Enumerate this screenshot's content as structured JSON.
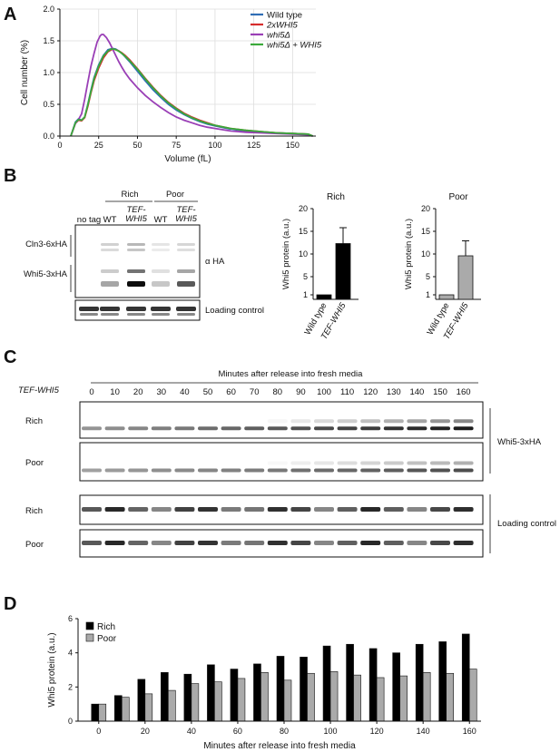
{
  "panels": {
    "A": {
      "letter": "A",
      "chart_data": {
        "type": "line",
        "xlabel": "Volume (fL)",
        "ylabel": "Cell number (%)",
        "xlim": [
          0,
          165
        ],
        "ylim": [
          0,
          2.0
        ],
        "x_ticks": [
          "0",
          "25",
          "50",
          "75",
          "100",
          "125",
          "150"
        ],
        "y_ticks": [
          "0.0",
          "0.5",
          "1.0",
          "1.5",
          "2.0"
        ],
        "legend_position": "top-right",
        "series": [
          {
            "name": "Wild type",
            "color": "#2f6db5",
            "x": [
              7,
              10,
              12,
              14,
              16,
              18,
              20,
              22,
              25,
              28,
              31,
              34,
              36,
              38,
              40,
              42,
              45,
              50,
              55,
              60,
              65,
              70,
              75,
              80,
              85,
              90,
              95,
              100,
              110,
              120,
              130,
              140,
              150,
              160,
              163
            ],
            "y": [
              0.0,
              0.22,
              0.27,
              0.25,
              0.3,
              0.5,
              0.72,
              0.92,
              1.12,
              1.27,
              1.36,
              1.38,
              1.37,
              1.34,
              1.3,
              1.25,
              1.17,
              1.02,
              0.87,
              0.73,
              0.61,
              0.5,
              0.41,
              0.34,
              0.28,
              0.23,
              0.19,
              0.16,
              0.11,
              0.08,
              0.06,
              0.05,
              0.04,
              0.03,
              0.0
            ]
          },
          {
            "name": "2xWHI5",
            "color": "#d62c2c",
            "x": [
              7,
              10,
              12,
              14,
              16,
              18,
              20,
              22,
              25,
              28,
              31,
              34,
              36,
              38,
              40,
              42,
              45,
              50,
              55,
              60,
              65,
              70,
              75,
              80,
              85,
              90,
              95,
              100,
              110,
              120,
              130,
              140,
              150,
              160,
              163
            ],
            "y": [
              0.0,
              0.2,
              0.25,
              0.24,
              0.29,
              0.47,
              0.68,
              0.87,
              1.07,
              1.23,
              1.33,
              1.37,
              1.36,
              1.34,
              1.31,
              1.27,
              1.2,
              1.06,
              0.91,
              0.77,
              0.64,
              0.53,
              0.44,
              0.36,
              0.3,
              0.25,
              0.21,
              0.17,
              0.12,
              0.09,
              0.07,
              0.05,
              0.04,
              0.03,
              0.0
            ]
          },
          {
            "name": "whi5Δ",
            "color": "#9a3fb6",
            "x": [
              7,
              10,
              12,
              14,
              16,
              18,
              20,
              22,
              24,
              26,
              27,
              28,
              30,
              32,
              34,
              36,
              38,
              40,
              42,
              45,
              50,
              55,
              60,
              65,
              70,
              75,
              80,
              85,
              90,
              95,
              100,
              110,
              120,
              130,
              140,
              150,
              160,
              163
            ],
            "y": [
              0.0,
              0.2,
              0.26,
              0.35,
              0.58,
              0.85,
              1.1,
              1.3,
              1.48,
              1.58,
              1.6,
              1.6,
              1.55,
              1.47,
              1.37,
              1.27,
              1.17,
              1.08,
              1.0,
              0.9,
              0.76,
              0.64,
              0.54,
              0.45,
              0.37,
              0.3,
              0.25,
              0.21,
              0.17,
              0.14,
              0.12,
              0.08,
              0.06,
              0.05,
              0.04,
              0.03,
              0.02,
              0.0
            ]
          },
          {
            "name": "whi5Δ + WHI5",
            "color": "#3aaa3a",
            "x": [
              7,
              10,
              12,
              14,
              16,
              18,
              20,
              22,
              25,
              28,
              31,
              33,
              35,
              37,
              39,
              41,
              44,
              50,
              55,
              60,
              65,
              70,
              75,
              80,
              85,
              90,
              95,
              100,
              110,
              120,
              130,
              140,
              150,
              160,
              163
            ],
            "y": [
              0.0,
              0.21,
              0.26,
              0.25,
              0.3,
              0.49,
              0.7,
              0.9,
              1.1,
              1.26,
              1.34,
              1.37,
              1.37,
              1.35,
              1.32,
              1.28,
              1.21,
              1.05,
              0.9,
              0.76,
              0.63,
              0.52,
              0.43,
              0.35,
              0.29,
              0.24,
              0.2,
              0.17,
              0.12,
              0.09,
              0.07,
              0.05,
              0.04,
              0.03,
              0.0
            ]
          }
        ]
      }
    },
    "B": {
      "letter": "B",
      "blot": {
        "group_labels": [
          "Rich",
          "Poor"
        ],
        "lane_labels": [
          "no tag",
          "WT",
          "TEF-WHI5",
          "WT",
          "TEF-WHI5"
        ],
        "lane_label_lines": [
          [
            "no tag"
          ],
          [
            "WT"
          ],
          [
            "TEF-",
            "WHI5"
          ],
          [
            "WT"
          ],
          [
            "TEF-",
            "WHI5"
          ]
        ],
        "lane_italic": [
          false,
          false,
          true,
          false,
          true
        ],
        "band_labels": [
          "Cln3-6xHA",
          "Whi5-3xHA"
        ],
        "antibody_label": "α HA",
        "loading_label": "Loading control"
      },
      "bar_charts": [
        {
          "type": "bar",
          "title": "Rich",
          "ylabel": "Whi5 protein (a.u.)",
          "categories": [
            "Wild type",
            "TEF-WHI5"
          ],
          "category_italic": [
            false,
            true
          ],
          "values": [
            1,
            12.3
          ],
          "errors": [
            0,
            3.5
          ],
          "colors": [
            "#000000",
            "#000000"
          ],
          "ylim": [
            0,
            20
          ],
          "y_ticks": [
            "1",
            "5",
            "10",
            "15",
            "20"
          ]
        },
        {
          "type": "bar",
          "title": "Poor",
          "ylabel": "Whi5 protein (a.u.)",
          "categories": [
            "Wild type",
            "TEF-WHI5"
          ],
          "category_italic": [
            false,
            true
          ],
          "values": [
            1,
            9.6
          ],
          "errors": [
            0,
            3.3
          ],
          "colors": [
            "#aaaaaa",
            "#aaaaaa"
          ],
          "ylim": [
            0,
            20
          ],
          "y_ticks": [
            "1",
            "5",
            "10",
            "15",
            "20"
          ]
        }
      ]
    },
    "C": {
      "letter": "C",
      "header": "Minutes after release into fresh media",
      "strain_label": "TEF-WHI5",
      "timepoints": [
        "0",
        "10",
        "20",
        "30",
        "40",
        "50",
        "60",
        "70",
        "80",
        "90",
        "100",
        "110",
        "120",
        "130",
        "140",
        "150",
        "160"
      ],
      "row_labels": [
        "Rich",
        "Poor",
        "Rich",
        "Poor"
      ],
      "side_labels": [
        "Whi5-3xHA",
        "Loading control"
      ]
    },
    "D": {
      "letter": "D",
      "chart_data": {
        "type": "bar",
        "xlabel": "Minutes after release into fresh media",
        "ylabel": "Whi5 protein (a.u.)",
        "ylim": [
          0,
          6
        ],
        "y_ticks": [
          "0",
          "2",
          "4",
          "6"
        ],
        "x_ticks": [
          "0",
          "20",
          "40",
          "60",
          "80",
          "100",
          "120",
          "140",
          "160"
        ],
        "categories": [
          "0",
          "10",
          "20",
          "30",
          "40",
          "50",
          "60",
          "70",
          "80",
          "90",
          "100",
          "110",
          "120",
          "130",
          "140",
          "150",
          "160"
        ],
        "legend_position": "top-left",
        "series": [
          {
            "name": "Rich",
            "color": "#000000",
            "values": [
              1.0,
              1.5,
              2.45,
              2.85,
              2.75,
              3.3,
              3.05,
              3.35,
              3.8,
              3.75,
              4.4,
              4.5,
              4.25,
              4.0,
              4.5,
              4.65,
              5.1
            ]
          },
          {
            "name": "Poor",
            "color": "#aaaaaa",
            "values": [
              1.0,
              1.4,
              1.6,
              1.8,
              2.2,
              2.3,
              2.5,
              2.85,
              2.4,
              2.8,
              2.9,
              2.7,
              2.55,
              2.65,
              2.85,
              2.8,
              3.05
            ]
          }
        ]
      }
    }
  }
}
